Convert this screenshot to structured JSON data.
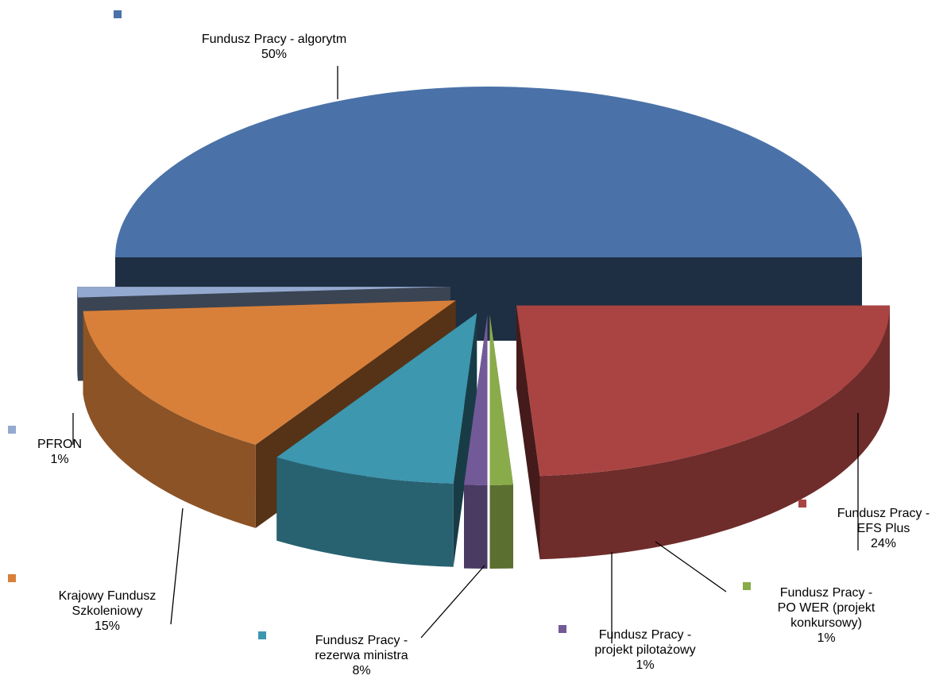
{
  "chart_data": {
    "type": "pie",
    "categories": [
      "Fundusz Pracy - algorytm",
      "Fundusz Pracy - EFS Plus",
      "Fundusz Pracy - PO WER (projekt konkursowy)",
      "Fundusz Pracy - projekt pilotażowy",
      "Fundusz Pracy - rezerwa ministra",
      "Krajowy Fundusz Szkoleniowy",
      "PFRON"
    ],
    "values": [
      50,
      24,
      1,
      1,
      8,
      15,
      1
    ],
    "value_labels": [
      "50%",
      "24%",
      "1%",
      "1%",
      "8%",
      "15%",
      "1%"
    ],
    "colors": [
      "#4a72a8",
      "#a94442",
      "#8aab4a",
      "#725a98",
      "#3d97ae",
      "#d8803a",
      "#94a9cf"
    ]
  }
}
